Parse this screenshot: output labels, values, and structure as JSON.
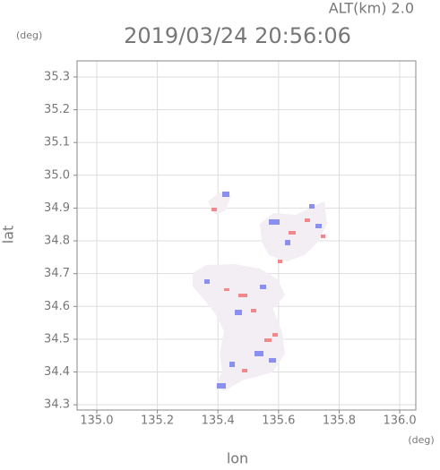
{
  "chart_data": {
    "type": "heatmap",
    "title": "2019/03/24 20:56:06",
    "corner_label": "ALT(km) 2.0",
    "x_label": "lon",
    "y_label": "lat",
    "x_unit": "(deg)",
    "y_unit": "(deg)",
    "xlim": [
      134.935,
      136.053
    ],
    "ylim": [
      34.284,
      35.349
    ],
    "xticks": [
      {
        "value": 135,
        "label": "135.0"
      },
      135.2,
      135.4,
      135.6,
      135.8,
      {
        "value": 136,
        "label": "136.0"
      }
    ],
    "yticks": [
      34.3,
      34.4,
      34.5,
      34.6,
      34.7,
      34.8,
      34.9,
      {
        "value": 35,
        "label": "35.0"
      },
      35.1,
      35.2,
      35.3
    ],
    "grid": true
  }
}
